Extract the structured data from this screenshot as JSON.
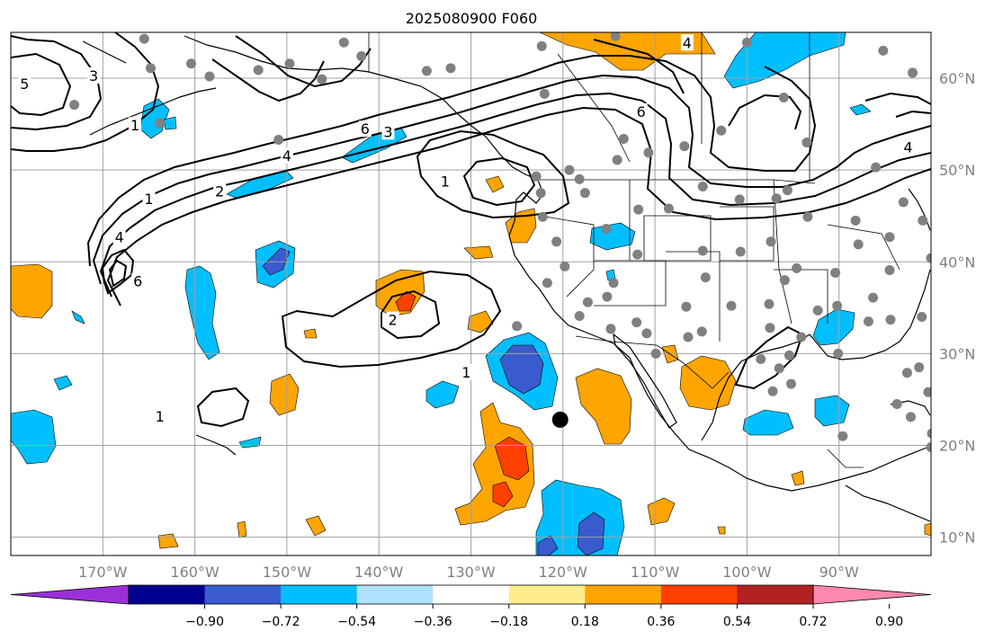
{
  "title": "2025080900 F060",
  "map": {
    "lon_range": [
      -180,
      -80
    ],
    "lat_range": [
      8,
      65
    ],
    "lon_ticks": [
      {
        "value": -170,
        "label": "170°W"
      },
      {
        "value": -160,
        "label": "160°W"
      },
      {
        "value": -150,
        "label": "150°W"
      },
      {
        "value": -140,
        "label": "140°W"
      },
      {
        "value": -130,
        "label": "130°W"
      },
      {
        "value": -120,
        "label": "120°W"
      },
      {
        "value": -110,
        "label": "110°W"
      },
      {
        "value": -100,
        "label": "100°W"
      },
      {
        "value": -90,
        "label": "90°W"
      }
    ],
    "lat_ticks": [
      {
        "value": 60,
        "label": "60°N"
      },
      {
        "value": 50,
        "label": "50°N"
      },
      {
        "value": 40,
        "label": "40°N"
      },
      {
        "value": 30,
        "label": "30°N"
      },
      {
        "value": 20,
        "label": "20°N"
      },
      {
        "value": 10,
        "label": "10°N"
      }
    ],
    "storm_marker": {
      "lon": -120.3,
      "lat": 22.8
    },
    "contour_labels": [
      {
        "text": "1",
        "lon": -130.5,
        "lat": 27.9
      },
      {
        "text": "2",
        "lon": -138.5,
        "lat": 33.6
      },
      {
        "text": "1",
        "lon": -163.8,
        "lat": 23.1
      },
      {
        "text": "1",
        "lon": -165.0,
        "lat": 46.8
      },
      {
        "text": "2",
        "lon": -157.3,
        "lat": 47.6
      },
      {
        "text": "4",
        "lon": -150.0,
        "lat": 51.5
      },
      {
        "text": "4",
        "lon": -168.2,
        "lat": 42.6
      },
      {
        "text": "6",
        "lon": -166.2,
        "lat": 37.8
      },
      {
        "text": "6",
        "lon": -141.5,
        "lat": 54.4
      },
      {
        "text": "3",
        "lon": -139.0,
        "lat": 54.1
      },
      {
        "text": "1",
        "lon": -132.8,
        "lat": 48.7
      },
      {
        "text": "4",
        "lon": -106.5,
        "lat": 63.8
      },
      {
        "text": "6",
        "lon": -111.5,
        "lat": 56.3
      },
      {
        "text": "4",
        "lon": -82.5,
        "lat": 52.4
      },
      {
        "text": "5",
        "lon": -178.5,
        "lat": 59.3
      },
      {
        "text": "3",
        "lon": -171.0,
        "lat": 60.2
      },
      {
        "text": "1",
        "lon": -166.5,
        "lat": 54.8
      }
    ]
  },
  "colorbar": {
    "colors": [
      "#9b30d9",
      "#000090",
      "#3a5bcd",
      "#00bfff",
      "#b0e2ff",
      "#ffffff",
      "#ffec8b",
      "#ffa500",
      "#ff4000",
      "#b22222",
      "#ff88b0"
    ],
    "ticks": [
      "−0.90",
      "−0.72",
      "−0.54",
      "−0.36",
      "−0.18",
      "0.18",
      "0.36",
      "0.54",
      "0.72",
      "0.90"
    ]
  }
}
